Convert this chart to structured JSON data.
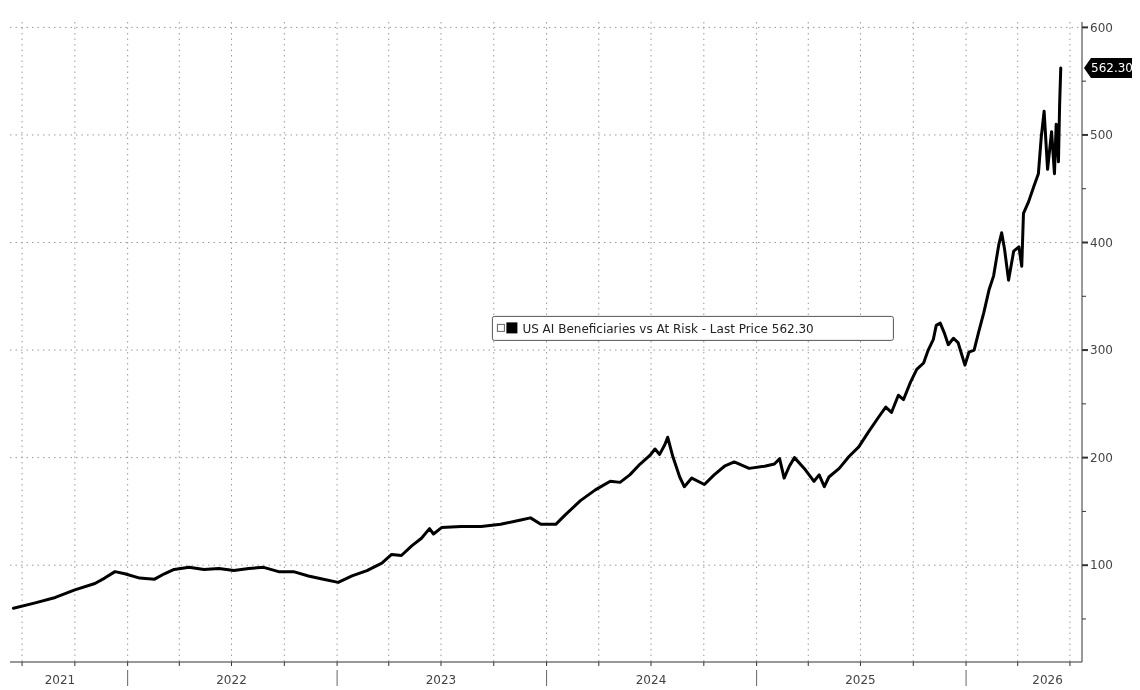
{
  "chart_data": {
    "type": "line",
    "xlim": [
      "2021-06-10",
      "2026-07-22"
    ],
    "ylim": [
      10,
      605
    ],
    "yticks": [
      {
        "value": 50,
        "label": null
      },
      100,
      {
        "value": 150,
        "label": null
      },
      200,
      {
        "value": 250,
        "label": null
      },
      300,
      {
        "value": 350,
        "label": null
      },
      400,
      {
        "value": 450,
        "label": null
      },
      500,
      {
        "value": 550,
        "label": null
      },
      600
    ],
    "xticks": [
      {
        "value": "2021-07-01",
        "label": null
      },
      {
        "value": "2021-10-01",
        "label": null
      },
      {
        "value": "2022-01-01",
        "label": null
      },
      {
        "value": "2022-04-01",
        "label": null
      },
      {
        "value": "2022-07-01",
        "label": null
      },
      {
        "value": "2022-10-01",
        "label": null
      },
      {
        "value": "2023-01-01",
        "label": null
      },
      {
        "value": "2023-04-01",
        "label": null
      },
      {
        "value": "2023-07-01",
        "label": null
      },
      {
        "value": "2023-10-01",
        "label": null
      },
      {
        "value": "2024-01-01",
        "label": null
      },
      {
        "value": "2024-04-01",
        "label": null
      },
      {
        "value": "2024-07-01",
        "label": null
      },
      {
        "value": "2024-10-01",
        "label": null
      },
      {
        "value": "2025-01-01",
        "label": null
      },
      {
        "value": "2025-04-01",
        "label": null
      },
      {
        "value": "2025-07-01",
        "label": null
      },
      {
        "value": "2025-10-01",
        "label": null
      },
      {
        "value": "2026-01-01",
        "label": null
      },
      {
        "value": "2026-04-01",
        "label": null
      },
      {
        "value": "2026-07-01",
        "label": null
      },
      {
        "value": "2021-09-05",
        "label": "2021"
      },
      {
        "value": "2022-07-01",
        "label": "2022"
      },
      {
        "value": "2023-07-01",
        "label": "2023"
      },
      {
        "value": "2024-07-01",
        "label": "2024"
      },
      {
        "value": "2025-07-01",
        "label": "2025"
      },
      {
        "value": "2026-05-23",
        "label": "2026"
      }
    ],
    "grid": true,
    "legend": "center",
    "line_style": "solid",
    "marker": "none",
    "annotations": [
      "562.30"
    ],
    "series": [
      {
        "name": "US AI Beneficiaries vs At Risk - Last Price 562.30",
        "color": "#000000",
        "x": [
          "2021-06-16",
          "2021-07-24",
          "2021-08-28",
          "2021-10-01",
          "2021-11-05",
          "2021-11-22",
          "2021-12-10",
          "2021-12-27",
          "2022-01-22",
          "2022-02-17",
          "2022-03-06",
          "2022-03-23",
          "2022-04-18",
          "2022-05-14",
          "2022-06-09",
          "2022-07-05",
          "2022-07-31",
          "2022-08-26",
          "2022-09-21",
          "2022-10-17",
          "2022-11-12",
          "2022-12-08",
          "2023-01-03",
          "2023-01-27",
          "2023-02-22",
          "2023-03-20",
          "2023-04-06",
          "2023-04-23",
          "2023-05-11",
          "2023-05-28",
          "2023-06-11",
          "2023-06-18",
          "2023-07-02",
          "2023-08-05",
          "2023-09-09",
          "2023-10-13",
          "2023-11-17",
          "2023-12-04",
          "2023-12-22",
          "2024-01-17",
          "2024-02-03",
          "2024-02-29",
          "2024-03-26",
          "2024-04-21",
          "2024-05-08",
          "2024-05-25",
          "2024-06-12",
          "2024-06-29",
          "2024-07-08",
          "2024-07-16",
          "2024-07-25",
          "2024-07-30",
          "2024-08-08",
          "2024-08-20",
          "2024-08-28",
          "2024-09-10",
          "2024-10-02",
          "2024-10-19",
          "2024-11-06",
          "2024-11-23",
          "2024-12-19",
          "2025-01-15",
          "2025-02-01",
          "2025-02-10",
          "2025-02-18",
          "2025-02-27",
          "2025-03-08",
          "2025-03-25",
          "2025-04-11",
          "2025-04-20",
          "2025-04-29",
          "2025-05-07",
          "2025-05-25",
          "2025-06-11",
          "2025-06-28",
          "2025-07-15",
          "2025-08-02",
          "2025-08-14",
          "2025-08-24",
          "2025-09-05",
          "2025-09-14",
          "2025-09-26",
          "2025-10-07",
          "2025-10-19",
          "2025-10-27",
          "2025-11-05",
          "2025-11-10",
          "2025-11-17",
          "2025-11-24",
          "2025-12-01",
          "2025-12-10",
          "2025-12-18",
          "2025-12-30",
          "2026-01-06",
          "2026-01-15",
          "2026-01-23",
          "2026-02-01",
          "2026-02-10",
          "2026-02-18",
          "2026-02-27",
          "2026-03-04",
          "2026-03-09",
          "2026-03-16",
          "2026-03-25",
          "2026-04-03",
          "2026-04-08",
          "2026-04-11",
          "2026-04-20",
          "2026-04-29",
          "2026-05-07",
          "2026-05-12",
          "2026-05-17",
          "2026-05-23",
          "2026-05-30",
          "2026-06-04",
          "2026-06-07",
          "2026-06-11",
          "2026-06-13",
          "2026-06-15"
        ],
        "values": [
          60,
          65,
          70,
          77,
          83,
          88,
          94,
          92,
          88,
          87,
          92,
          96,
          98,
          96,
          97,
          95,
          97,
          98,
          94,
          94,
          90,
          87,
          84,
          90,
          95,
          102,
          110,
          109,
          118,
          125,
          134,
          129,
          135,
          136,
          136,
          138,
          142,
          144,
          138,
          138,
          147,
          160,
          170,
          178,
          177,
          184,
          194,
          202,
          208,
          203,
          212,
          219,
          201,
          182,
          173,
          181,
          175,
          184,
          192,
          196,
          190,
          192,
          194,
          199,
          181,
          192,
          200,
          190,
          178,
          184,
          173,
          182,
          190,
          201,
          210,
          224,
          238,
          247,
          242,
          258,
          254,
          270,
          282,
          288,
          300,
          310,
          323,
          325,
          316,
          305,
          311,
          307,
          286,
          298,
          300,
          317,
          335,
          356,
          369,
          398,
          409,
          394,
          365,
          392,
          396,
          378,
          427,
          438,
          452,
          464,
          498,
          522,
          468,
          503,
          464,
          510,
          475,
          528,
          562.3
        ]
      }
    ]
  }
}
